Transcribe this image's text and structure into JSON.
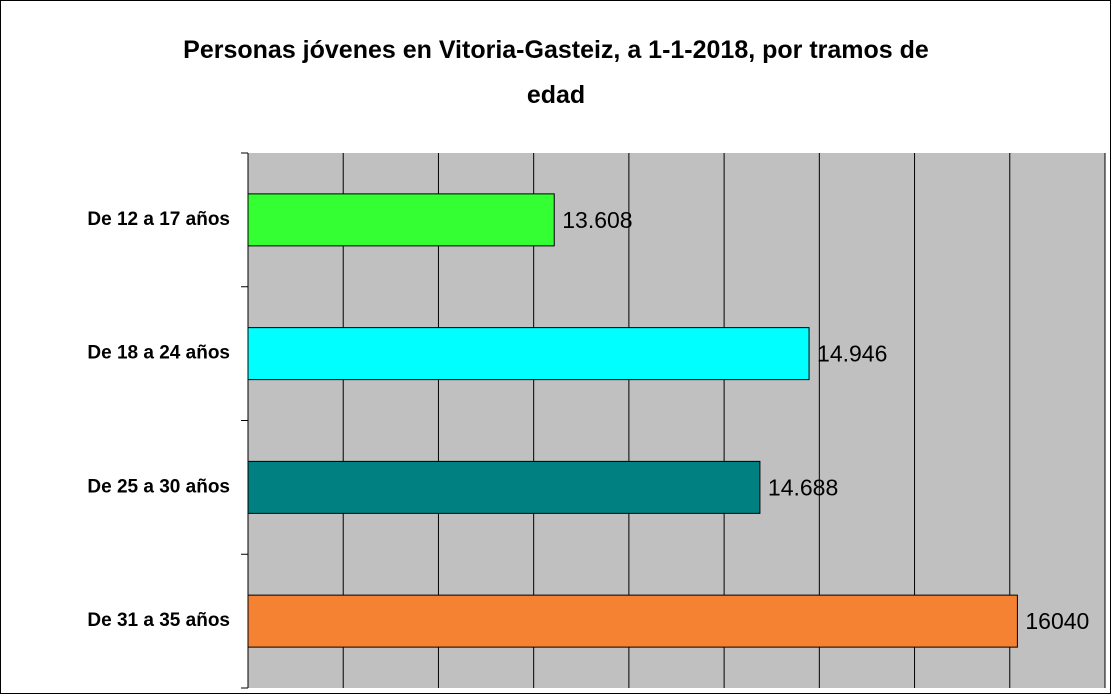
{
  "chart_data": {
    "type": "barh",
    "title": "Personas jóvenes en Vitoria-Gasteiz, a 1-1-2018, por tramos de edad",
    "categories": [
      "De 12 a 17 años",
      "De 18 a 24 años",
      "De 25 a 30 años",
      "De 31 a 35 años"
    ],
    "values": [
      13608,
      14946,
      14688,
      16040
    ],
    "value_labels": [
      "13.608",
      "14.946",
      "14.688",
      "16040"
    ],
    "colors": [
      "#33ff33",
      "#00ffff",
      "#008080",
      "#f58233"
    ],
    "xlim": [
      12000,
      16500
    ],
    "xticks": [
      12000,
      12500,
      13000,
      13500,
      14000,
      14500,
      15000,
      15500,
      16000,
      16500
    ],
    "xtick_labels": false,
    "grid": true
  }
}
